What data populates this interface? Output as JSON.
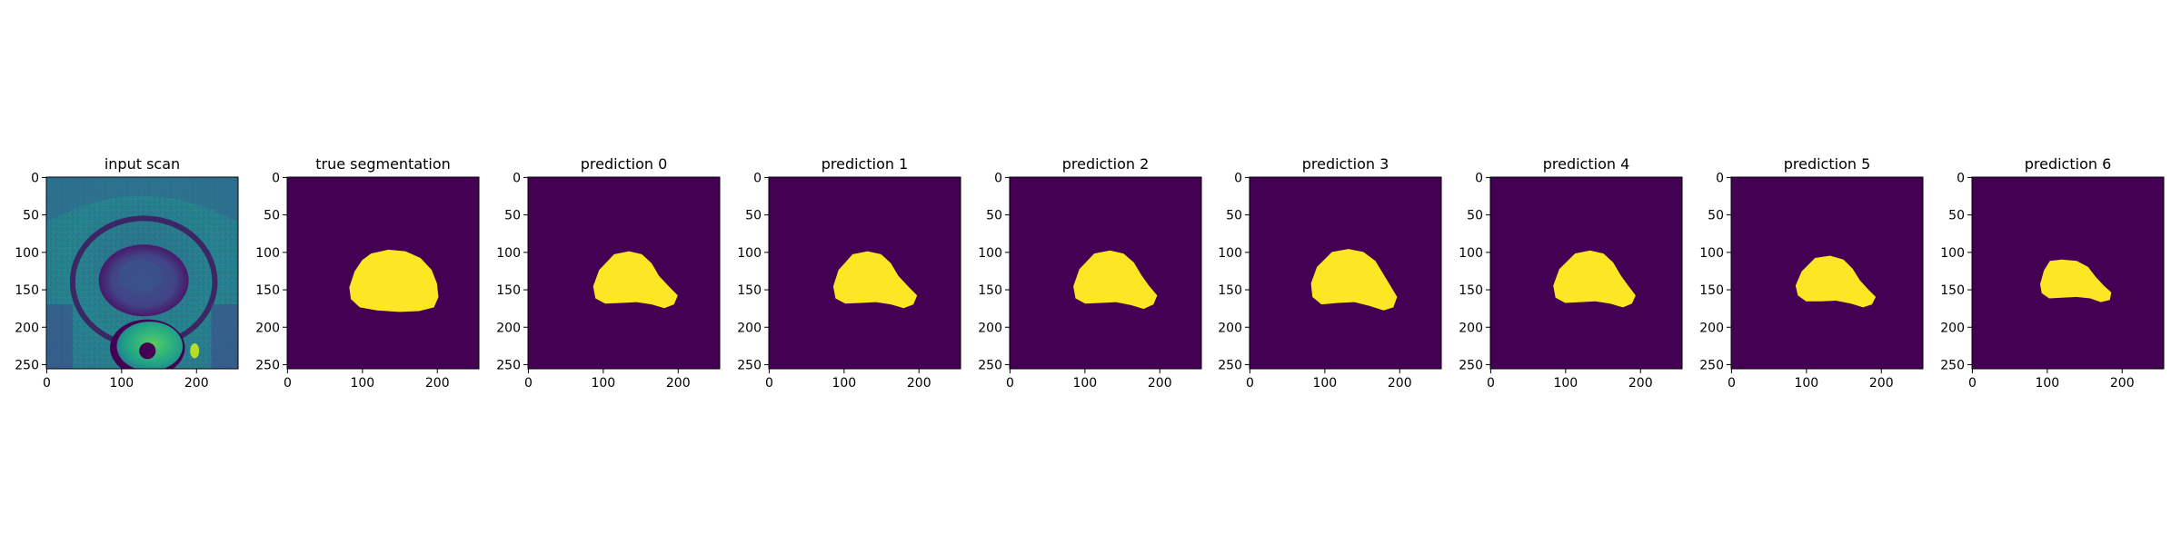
{
  "figure": {
    "background": "#ffffff"
  },
  "colors": {
    "background_class": "#440154",
    "mask_class": "#fde725",
    "axis": "#000000"
  },
  "chart_data": [
    {
      "type": "heatmap",
      "title": "input scan",
      "image": "mri-scan",
      "colormap": "viridis",
      "xlim": [
        0,
        255
      ],
      "ylim": [
        255,
        0
      ],
      "xticks": [
        0,
        100,
        200
      ],
      "yticks": [
        0,
        50,
        100,
        150,
        200,
        250
      ]
    },
    {
      "type": "heatmap",
      "title": "true segmentation",
      "image": "binary-mask",
      "colormap": "viridis",
      "xlim": [
        0,
        255
      ],
      "ylim": [
        255,
        0
      ],
      "xticks": [
        0,
        100,
        200
      ],
      "yticks": [
        0,
        50,
        100,
        150,
        200,
        250
      ],
      "mask_outline": [
        [
          112,
          102
        ],
        [
          135,
          97
        ],
        [
          158,
          99
        ],
        [
          178,
          108
        ],
        [
          193,
          124
        ],
        [
          200,
          142
        ],
        [
          202,
          160
        ],
        [
          196,
          174
        ],
        [
          176,
          179
        ],
        [
          150,
          180
        ],
        [
          120,
          178
        ],
        [
          97,
          174
        ],
        [
          85,
          163
        ],
        [
          83,
          147
        ],
        [
          90,
          126
        ],
        [
          100,
          111
        ]
      ]
    },
    {
      "type": "heatmap",
      "title": "prediction 0",
      "image": "binary-mask",
      "colormap": "viridis",
      "xlim": [
        0,
        255
      ],
      "ylim": [
        255,
        0
      ],
      "xticks": [
        0,
        100,
        200
      ],
      "yticks": [
        0,
        50,
        100,
        150,
        200,
        250
      ],
      "mask_outline": [
        [
          115,
          103
        ],
        [
          135,
          99
        ],
        [
          152,
          103
        ],
        [
          165,
          115
        ],
        [
          175,
          132
        ],
        [
          188,
          146
        ],
        [
          200,
          158
        ],
        [
          195,
          170
        ],
        [
          182,
          175
        ],
        [
          165,
          170
        ],
        [
          145,
          167
        ],
        [
          125,
          168
        ],
        [
          103,
          169
        ],
        [
          90,
          162
        ],
        [
          87,
          146
        ],
        [
          95,
          124
        ]
      ]
    },
    {
      "type": "heatmap",
      "title": "prediction 1",
      "image": "binary-mask",
      "colormap": "viridis",
      "xlim": [
        0,
        255
      ],
      "ylim": [
        255,
        0
      ],
      "xticks": [
        0,
        100,
        200
      ],
      "yticks": [
        0,
        50,
        100,
        150,
        200,
        250
      ],
      "mask_outline": [
        [
          112,
          103
        ],
        [
          132,
          99
        ],
        [
          150,
          103
        ],
        [
          163,
          115
        ],
        [
          173,
          132
        ],
        [
          186,
          146
        ],
        [
          198,
          158
        ],
        [
          193,
          170
        ],
        [
          180,
          175
        ],
        [
          163,
          170
        ],
        [
          143,
          167
        ],
        [
          123,
          168
        ],
        [
          102,
          169
        ],
        [
          89,
          162
        ],
        [
          86,
          146
        ],
        [
          93,
          124
        ]
      ]
    },
    {
      "type": "heatmap",
      "title": "prediction 2",
      "image": "binary-mask",
      "colormap": "viridis",
      "xlim": [
        0,
        255
      ],
      "ylim": [
        255,
        0
      ],
      "xticks": [
        0,
        100,
        200
      ],
      "yticks": [
        0,
        50,
        100,
        150,
        200,
        250
      ],
      "mask_outline": [
        [
          113,
          102
        ],
        [
          134,
          98
        ],
        [
          152,
          102
        ],
        [
          166,
          114
        ],
        [
          176,
          131
        ],
        [
          186,
          145
        ],
        [
          197,
          158
        ],
        [
          192,
          170
        ],
        [
          179,
          176
        ],
        [
          162,
          171
        ],
        [
          142,
          167
        ],
        [
          122,
          168
        ],
        [
          101,
          169
        ],
        [
          88,
          162
        ],
        [
          85,
          146
        ],
        [
          93,
          123
        ]
      ]
    },
    {
      "type": "heatmap",
      "title": "prediction 3",
      "image": "binary-mask",
      "colormap": "viridis",
      "xlim": [
        0,
        255
      ],
      "ylim": [
        255,
        0
      ],
      "xticks": [
        0,
        100,
        200
      ],
      "yticks": [
        0,
        50,
        100,
        150,
        200,
        250
      ],
      "mask_outline": [
        [
          110,
          100
        ],
        [
          132,
          96
        ],
        [
          152,
          100
        ],
        [
          168,
          112
        ],
        [
          179,
          130
        ],
        [
          188,
          145
        ],
        [
          197,
          160
        ],
        [
          192,
          174
        ],
        [
          179,
          178
        ],
        [
          160,
          172
        ],
        [
          140,
          167
        ],
        [
          118,
          168
        ],
        [
          96,
          170
        ],
        [
          84,
          160
        ],
        [
          82,
          142
        ],
        [
          90,
          120
        ]
      ]
    },
    {
      "type": "heatmap",
      "title": "prediction 4",
      "image": "binary-mask",
      "colormap": "viridis",
      "xlim": [
        0,
        255
      ],
      "ylim": [
        255,
        0
      ],
      "xticks": [
        0,
        100,
        200
      ],
      "yticks": [
        0,
        50,
        100,
        150,
        200,
        250
      ],
      "mask_outline": [
        [
          113,
          102
        ],
        [
          133,
          98
        ],
        [
          151,
          102
        ],
        [
          164,
          114
        ],
        [
          174,
          131
        ],
        [
          184,
          145
        ],
        [
          194,
          158
        ],
        [
          189,
          169
        ],
        [
          177,
          174
        ],
        [
          160,
          169
        ],
        [
          140,
          166
        ],
        [
          120,
          167
        ],
        [
          100,
          168
        ],
        [
          87,
          161
        ],
        [
          84,
          145
        ],
        [
          92,
          123
        ]
      ]
    },
    {
      "type": "heatmap",
      "title": "prediction 5",
      "image": "binary-mask",
      "colormap": "viridis",
      "xlim": [
        0,
        255
      ],
      "ylim": [
        255,
        0
      ],
      "xticks": [
        0,
        100,
        200
      ],
      "yticks": [
        0,
        50,
        100,
        150,
        200,
        250
      ],
      "mask_outline": [
        [
          112,
          108
        ],
        [
          132,
          105
        ],
        [
          150,
          110
        ],
        [
          162,
          122
        ],
        [
          172,
          138
        ],
        [
          183,
          150
        ],
        [
          193,
          160
        ],
        [
          188,
          170
        ],
        [
          176,
          174
        ],
        [
          160,
          169
        ],
        [
          140,
          165
        ],
        [
          120,
          166
        ],
        [
          100,
          166
        ],
        [
          89,
          158
        ],
        [
          86,
          145
        ],
        [
          94,
          126
        ]
      ]
    },
    {
      "type": "heatmap",
      "title": "prediction 6",
      "image": "binary-mask",
      "colormap": "viridis",
      "xlim": [
        0,
        255
      ],
      "ylim": [
        255,
        0
      ],
      "xticks": [
        0,
        100,
        200
      ],
      "yticks": [
        0,
        50,
        100,
        150,
        200,
        250
      ],
      "mask_outline": [
        [
          104,
          112
        ],
        [
          120,
          110
        ],
        [
          140,
          112
        ],
        [
          155,
          120
        ],
        [
          165,
          133
        ],
        [
          176,
          145
        ],
        [
          186,
          154
        ],
        [
          184,
          164
        ],
        [
          172,
          167
        ],
        [
          158,
          162
        ],
        [
          140,
          160
        ],
        [
          120,
          161
        ],
        [
          103,
          162
        ],
        [
          93,
          155
        ],
        [
          91,
          143
        ],
        [
          96,
          125
        ]
      ]
    }
  ]
}
